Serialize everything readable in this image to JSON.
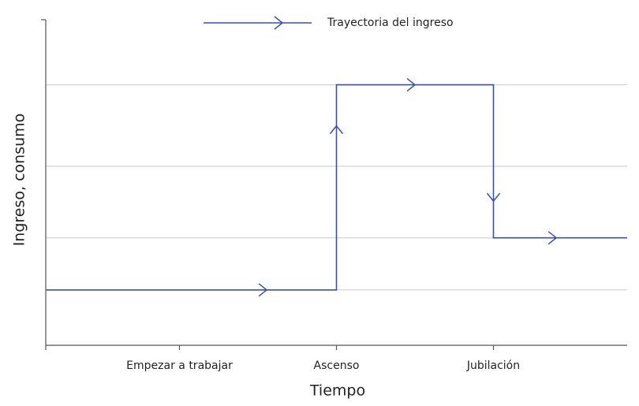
{
  "chart_data": {
    "type": "line",
    "x_axis_label": "Tiempo",
    "y_axis_label": "Ingreso, consumo",
    "xlim": [
      0,
      100
    ],
    "ylim": [
      0,
      100
    ],
    "xticks": [
      {
        "value": 23,
        "label": "Empezar a trabajar"
      },
      {
        "value": 50,
        "label": "Ascenso"
      },
      {
        "value": 77,
        "label": "Jubilación"
      }
    ],
    "y_gridlines": [
      17,
      33,
      55,
      80
    ],
    "grid": true,
    "legend": "top",
    "series": [
      {
        "name": "Trayectoria del ingreso",
        "color": "#3b4fae",
        "x": [
          0,
          50,
          50,
          77,
          77,
          100
        ],
        "values": [
          17,
          17,
          80,
          80,
          33,
          33
        ]
      }
    ]
  }
}
